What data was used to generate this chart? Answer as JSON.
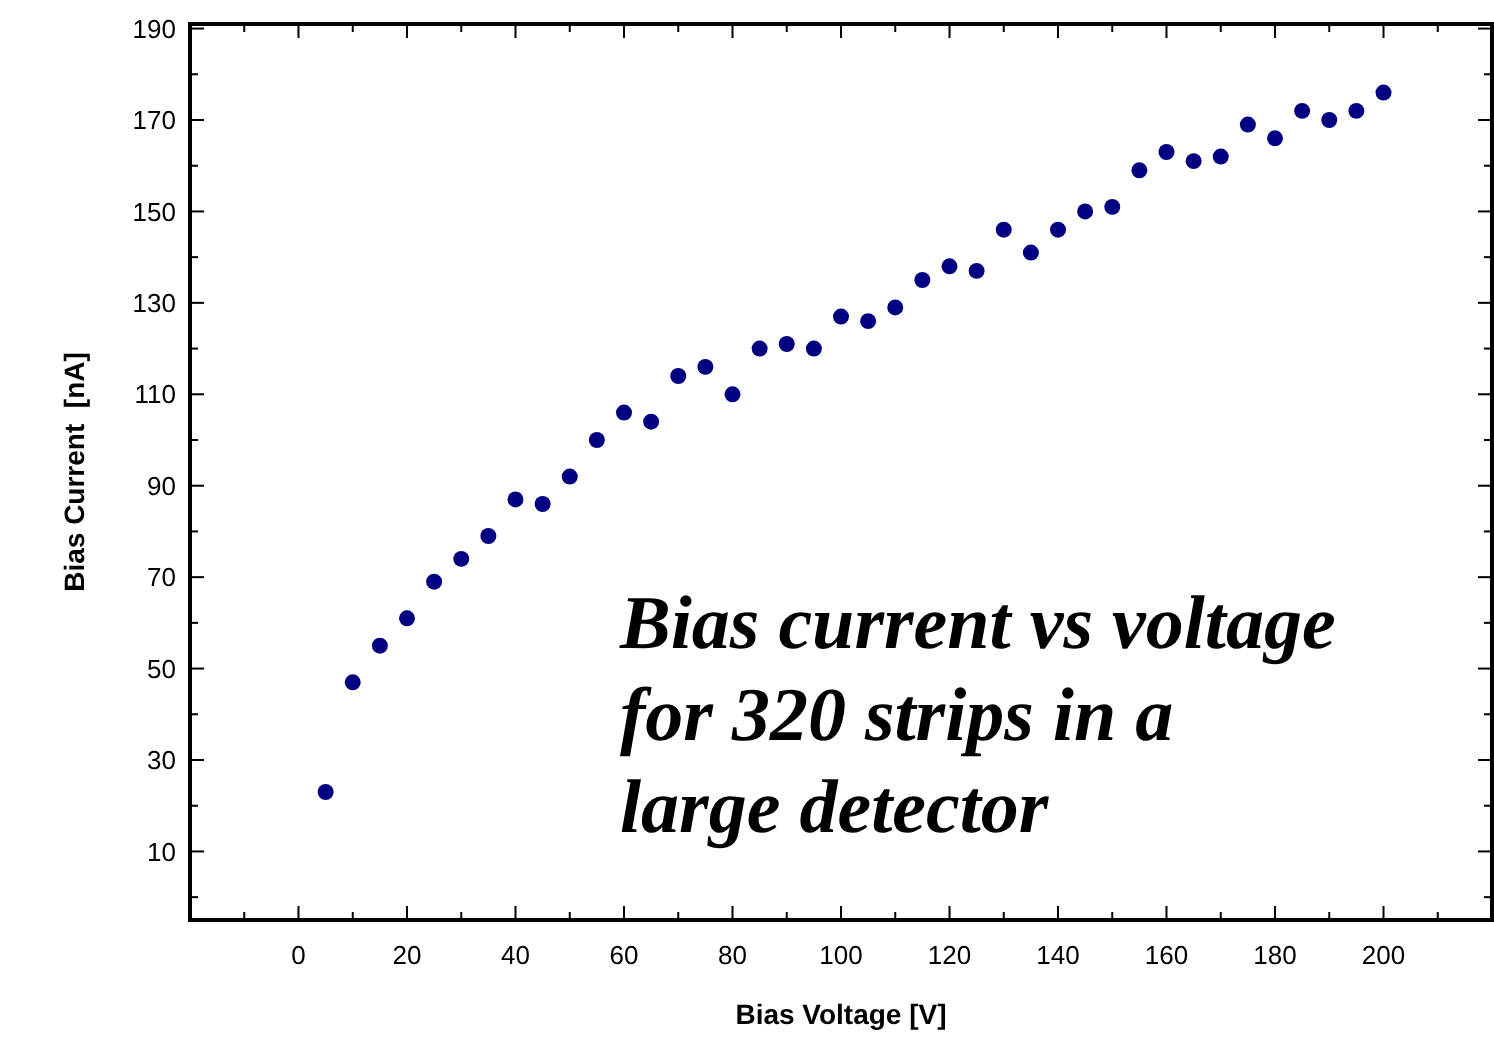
{
  "chart_data": {
    "type": "scatter",
    "xlabel": "Bias Voltage [V]",
    "ylabel": "Bias Current  [nA]",
    "annotations": [
      "Bias current vs voltage\nfor 320 strips in a\nlarge detector"
    ],
    "x": [
      5,
      10,
      15,
      20,
      25,
      30,
      35,
      40,
      45,
      50,
      55,
      60,
      65,
      70,
      75,
      80,
      85,
      90,
      95,
      100,
      105,
      110,
      115,
      120,
      125,
      130,
      135,
      140,
      145,
      150,
      155,
      160,
      165,
      170,
      175,
      180,
      185,
      190,
      195,
      200
    ],
    "series": [
      {
        "color": "#000080",
        "values": [
          23,
          47,
          55,
          61,
          69,
          74,
          79,
          87,
          86,
          92,
          100,
          106,
          104,
          114,
          116,
          110,
          120,
          121,
          120,
          127,
          126,
          129,
          135,
          138,
          137,
          146,
          141,
          146,
          150,
          151,
          159,
          163,
          161,
          162,
          169,
          166,
          172,
          170,
          172,
          176
        ]
      }
    ],
    "marker": "circle",
    "xlim": [
      -20,
      220
    ],
    "ylim": [
      -5,
      191
    ],
    "xticks": [
      {
        "value": -10,
        "label": null
      },
      0,
      {
        "value": 10,
        "label": null
      },
      20,
      {
        "value": 30,
        "label": null
      },
      40,
      {
        "value": 50,
        "label": null
      },
      60,
      {
        "value": 70,
        "label": null
      },
      80,
      {
        "value": 90,
        "label": null
      },
      100,
      {
        "value": 110,
        "label": null
      },
      120,
      {
        "value": 130,
        "label": null
      },
      140,
      {
        "value": 150,
        "label": null
      },
      160,
      {
        "value": 170,
        "label": null
      },
      180,
      {
        "value": 190,
        "label": null
      },
      200,
      {
        "value": 210,
        "label": null
      }
    ],
    "yticks": [
      {
        "value": 0,
        "label": null
      },
      10,
      {
        "value": 20,
        "label": null
      },
      30,
      {
        "value": 40,
        "label": null
      },
      50,
      {
        "value": 60,
        "label": null
      },
      70,
      {
        "value": 80,
        "label": null
      },
      90,
      {
        "value": 100,
        "label": null
      },
      110,
      {
        "value": 120,
        "label": null
      },
      130,
      {
        "value": 140,
        "label": null
      },
      150,
      {
        "value": 160,
        "label": null
      },
      170,
      {
        "value": 180,
        "label": null
      },
      190
    ],
    "grid": false
  }
}
